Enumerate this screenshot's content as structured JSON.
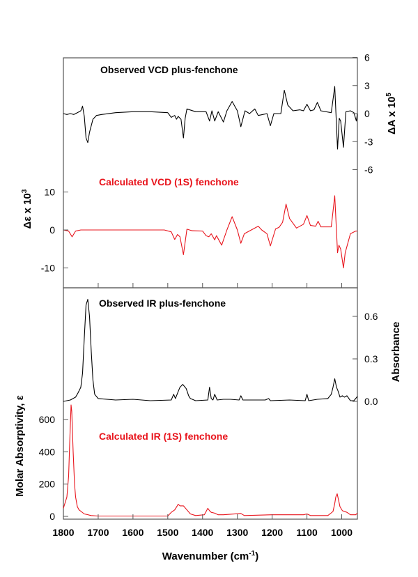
{
  "chart_data": {
    "type": "line",
    "xlabel": "Wavenumber (cm",
    "xlabel_sup": "-1",
    "xlabel_end": ")",
    "xlim": [
      1800,
      955
    ],
    "xticks": [
      1800,
      1700,
      1600,
      1500,
      1400,
      1300,
      1200,
      1100,
      1000
    ],
    "grid": false,
    "colors": {
      "observed": "#000000",
      "calculated": "#e8141c"
    },
    "axes": {
      "vcd_right": {
        "label": "ΔA x 10",
        "sup": "5",
        "ylim": [
          -6,
          6
        ],
        "ticks": [
          6,
          3,
          0,
          -3,
          -6
        ]
      },
      "vcd_left": {
        "label": "Δε x 10",
        "sup": "3",
        "ticks": [
          10,
          0,
          -10
        ]
      },
      "ir_right": {
        "label": "Absorbance",
        "ticks": [
          "0.6",
          "0.3",
          "0.0"
        ]
      },
      "ir_left": {
        "label": "Molar Absorptivity, ε",
        "ticks": [
          600,
          400,
          200,
          0
        ]
      }
    },
    "series": [
      {
        "name": "Observed VCD plus-fenchone",
        "axis": "vcd_right",
        "color": "#000000",
        "x": [
          1800,
          1790,
          1780,
          1770,
          1760,
          1750,
          1745,
          1740,
          1735,
          1730,
          1725,
          1715,
          1705,
          1690,
          1650,
          1600,
          1550,
          1500,
          1490,
          1480,
          1475,
          1470,
          1462,
          1455,
          1450,
          1445,
          1420,
          1390,
          1380,
          1373,
          1365,
          1355,
          1340,
          1330,
          1315,
          1300,
          1290,
          1278,
          1265,
          1250,
          1240,
          1215,
          1205,
          1195,
          1175,
          1165,
          1155,
          1140,
          1120,
          1110,
          1100,
          1090,
          1080,
          1070,
          1060,
          1030,
          1020,
          1012,
          1007,
          1003,
          995,
          988,
          975,
          965,
          958,
          955
        ],
        "y": [
          0,
          -0.1,
          0,
          -0.1,
          0.1,
          0.3,
          0.8,
          -0.3,
          -2.6,
          -3.1,
          -2.0,
          -0.6,
          -0.2,
          -0.1,
          0.1,
          0.2,
          0.2,
          0.1,
          -0.4,
          -0.2,
          -0.6,
          -0.3,
          -0.6,
          -2.6,
          -0.5,
          0.5,
          0.2,
          0.2,
          -0.8,
          0.3,
          -0.8,
          0.2,
          -0.9,
          0.3,
          1.3,
          0.3,
          -1.4,
          0.3,
          0,
          0.5,
          -0.2,
          0.0,
          -1.3,
          0,
          0,
          2.5,
          0.9,
          0.3,
          0.4,
          0.3,
          1.0,
          0.3,
          0.4,
          1.2,
          0.3,
          0.1,
          2.9,
          -3.8,
          -0.5,
          -0.8,
          -3.6,
          0.2,
          0.3,
          0.1,
          -0.8,
          0
        ]
      },
      {
        "name": "Calculated VCD (1S) fenchone",
        "axis": "vcd_left",
        "color": "#e8141c",
        "x": [
          1800,
          1785,
          1775,
          1765,
          1750,
          1700,
          1600,
          1510,
          1490,
          1480,
          1472,
          1465,
          1455,
          1445,
          1430,
          1400,
          1390,
          1382,
          1375,
          1365,
          1360,
          1345,
          1330,
          1315,
          1300,
          1290,
          1280,
          1260,
          1240,
          1230,
          1215,
          1205,
          1190,
          1180,
          1170,
          1160,
          1150,
          1130,
          1110,
          1100,
          1090,
          1075,
          1068,
          1060,
          1030,
          1020,
          1012,
          1008,
          1003,
          995,
          990,
          975,
          960,
          955
        ],
        "y": [
          0,
          -0.3,
          -1.8,
          -0.3,
          0,
          0,
          0,
          0,
          -0.5,
          -2.5,
          -1.2,
          -1.8,
          -6.5,
          0.2,
          -0.2,
          -0.3,
          -1.5,
          -1.8,
          -1.0,
          -2.6,
          -1.5,
          -4.0,
          0,
          3.5,
          0,
          -3.5,
          -1.0,
          0,
          1.0,
          0,
          -1.0,
          -4.2,
          0.3,
          0.7,
          2.0,
          6.8,
          3.0,
          0.5,
          1.5,
          3.8,
          1.2,
          1.0,
          2.3,
          0.8,
          0.8,
          9.0,
          -6.0,
          -4.0,
          -5.0,
          -10.0,
          -6.0,
          -1.0,
          -0.3,
          -0.3
        ]
      },
      {
        "name": "Observed IR plus-fenchone",
        "axis": "ir_right",
        "color": "#000000",
        "x": [
          1800,
          1780,
          1765,
          1758,
          1750,
          1745,
          1740,
          1735,
          1730,
          1725,
          1720,
          1715,
          1710,
          1700,
          1650,
          1600,
          1550,
          1490,
          1483,
          1478,
          1470,
          1465,
          1457,
          1447,
          1440,
          1435,
          1420,
          1385,
          1380,
          1375,
          1370,
          1365,
          1358,
          1340,
          1320,
          1295,
          1290,
          1284,
          1260,
          1220,
          1210,
          1205,
          1150,
          1105,
          1100,
          1095,
          1070,
          1040,
          1030,
          1025,
          1020,
          1015,
          1010,
          1005,
          998,
          992,
          985,
          975,
          965,
          955
        ],
        "y": [
          0,
          0.01,
          0.03,
          0.06,
          0.1,
          0.2,
          0.45,
          0.68,
          0.72,
          0.6,
          0.35,
          0.15,
          0.05,
          0.02,
          0.01,
          0.015,
          0.005,
          0.01,
          0.05,
          0.02,
          0.07,
          0.1,
          0.12,
          0.09,
          0.04,
          0.02,
          0.005,
          0.01,
          0.1,
          0.02,
          0.01,
          0.05,
          0.01,
          0.015,
          0.015,
          0.01,
          0.04,
          0.01,
          0.01,
          0.01,
          0.02,
          0.005,
          0.01,
          0.005,
          0.05,
          0.005,
          0.015,
          0.02,
          0.05,
          0.1,
          0.16,
          0.1,
          0.07,
          0.03,
          0.04,
          0.03,
          0.04,
          0.005,
          0.005,
          0.035
        ]
      },
      {
        "name": "Calculated IR (1S) fenchone",
        "axis": "ir_left",
        "color": "#e8141c",
        "x": [
          1800,
          1790,
          1785,
          1782,
          1778,
          1776,
          1772,
          1768,
          1765,
          1760,
          1755,
          1740,
          1720,
          1700,
          1600,
          1500,
          1490,
          1480,
          1470,
          1465,
          1455,
          1445,
          1435,
          1420,
          1395,
          1385,
          1380,
          1375,
          1365,
          1355,
          1340,
          1290,
          1280,
          1200,
          1110,
          1100,
          1090,
          1040,
          1025,
          1020,
          1017,
          1013,
          1008,
          1005,
          998,
          985,
          975,
          960,
          955
        ],
        "y": [
          50,
          120,
          250,
          450,
          690,
          650,
          400,
          200,
          120,
          60,
          40,
          15,
          5,
          2,
          2,
          2,
          25,
          40,
          75,
          65,
          65,
          40,
          15,
          5,
          10,
          50,
          35,
          25,
          20,
          10,
          10,
          18,
          5,
          10,
          10,
          15,
          5,
          5,
          30,
          80,
          120,
          140,
          90,
          60,
          35,
          25,
          10,
          10,
          20
        ]
      }
    ]
  }
}
